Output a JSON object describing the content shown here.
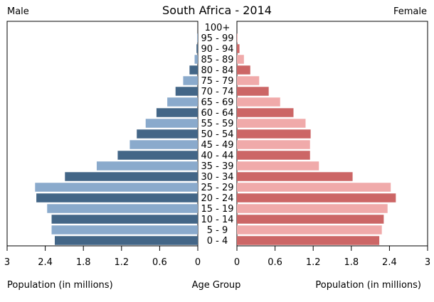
{
  "chart_data": {
    "type": "bar",
    "title": "South Africa - 2014",
    "left_label": "Male",
    "right_label": "Female",
    "xlabel_left": "Population (in millions)",
    "xlabel_center": "Age Group",
    "xlabel_right": "Population (in millions)",
    "xlim": [
      0,
      3
    ],
    "x_ticks": [
      "0",
      "0.6",
      "1.2",
      "1.8",
      "2.4",
      "3"
    ],
    "categories": [
      "0 - 4",
      "5 - 9",
      "10 - 14",
      "15 - 19",
      "20 - 24",
      "25 - 29",
      "30 - 34",
      "35 - 39",
      "40 - 44",
      "45 - 49",
      "50 - 54",
      "55 - 59",
      "60 - 64",
      "65 - 69",
      "70 - 74",
      "75 - 79",
      "80 - 84",
      "85 - 89",
      "90 - 94",
      "95 - 99",
      "100+"
    ],
    "series": [
      {
        "side": "male",
        "values": [
          2.25,
          2.3,
          2.3,
          2.37,
          2.54,
          2.56,
          2.09,
          1.59,
          1.26,
          1.07,
          0.96,
          0.82,
          0.65,
          0.48,
          0.35,
          0.23,
          0.13,
          0.05,
          0.02,
          0.01,
          0.0
        ]
      },
      {
        "side": "female",
        "values": [
          2.24,
          2.28,
          2.31,
          2.37,
          2.5,
          2.42,
          1.82,
          1.29,
          1.15,
          1.15,
          1.16,
          1.08,
          0.89,
          0.68,
          0.5,
          0.35,
          0.21,
          0.11,
          0.04,
          0.01,
          0.0
        ]
      }
    ],
    "colors": {
      "male_dark": "#436687",
      "male_light": "#8aaacc",
      "female_dark": "#cc6666",
      "female_light": "#f0aaaa"
    }
  }
}
